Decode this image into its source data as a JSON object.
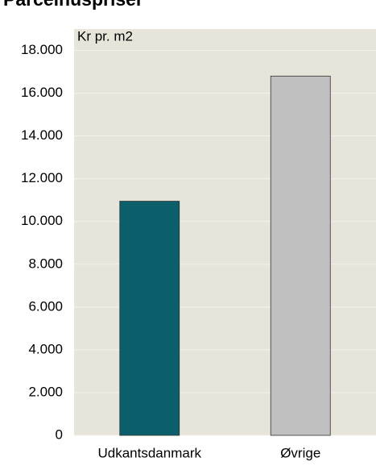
{
  "chart_data": {
    "type": "bar",
    "title": "Parcelhuspriser",
    "y_label": "Kr pr. m2",
    "categories": [
      "Udkantsdanmark",
      "Øvrige"
    ],
    "values": [
      10950,
      16800
    ],
    "colors": [
      "#0b5f6b",
      "#c0c0c0"
    ],
    "ylim": [
      0,
      19000
    ],
    "yticks": [
      0,
      {
        "value": 2000,
        "label": "2.000"
      },
      {
        "value": 4000,
        "label": "4.000"
      },
      {
        "value": 6000,
        "label": "6.000"
      },
      {
        "value": 8000,
        "label": "8.000"
      },
      {
        "value": 10000,
        "label": "10.000"
      },
      {
        "value": 12000,
        "label": "12.000"
      },
      {
        "value": 14000,
        "label": "14.000"
      },
      {
        "value": 16000,
        "label": "16.000"
      },
      {
        "value": 18000,
        "label": "18.000"
      }
    ],
    "grid": true
  }
}
